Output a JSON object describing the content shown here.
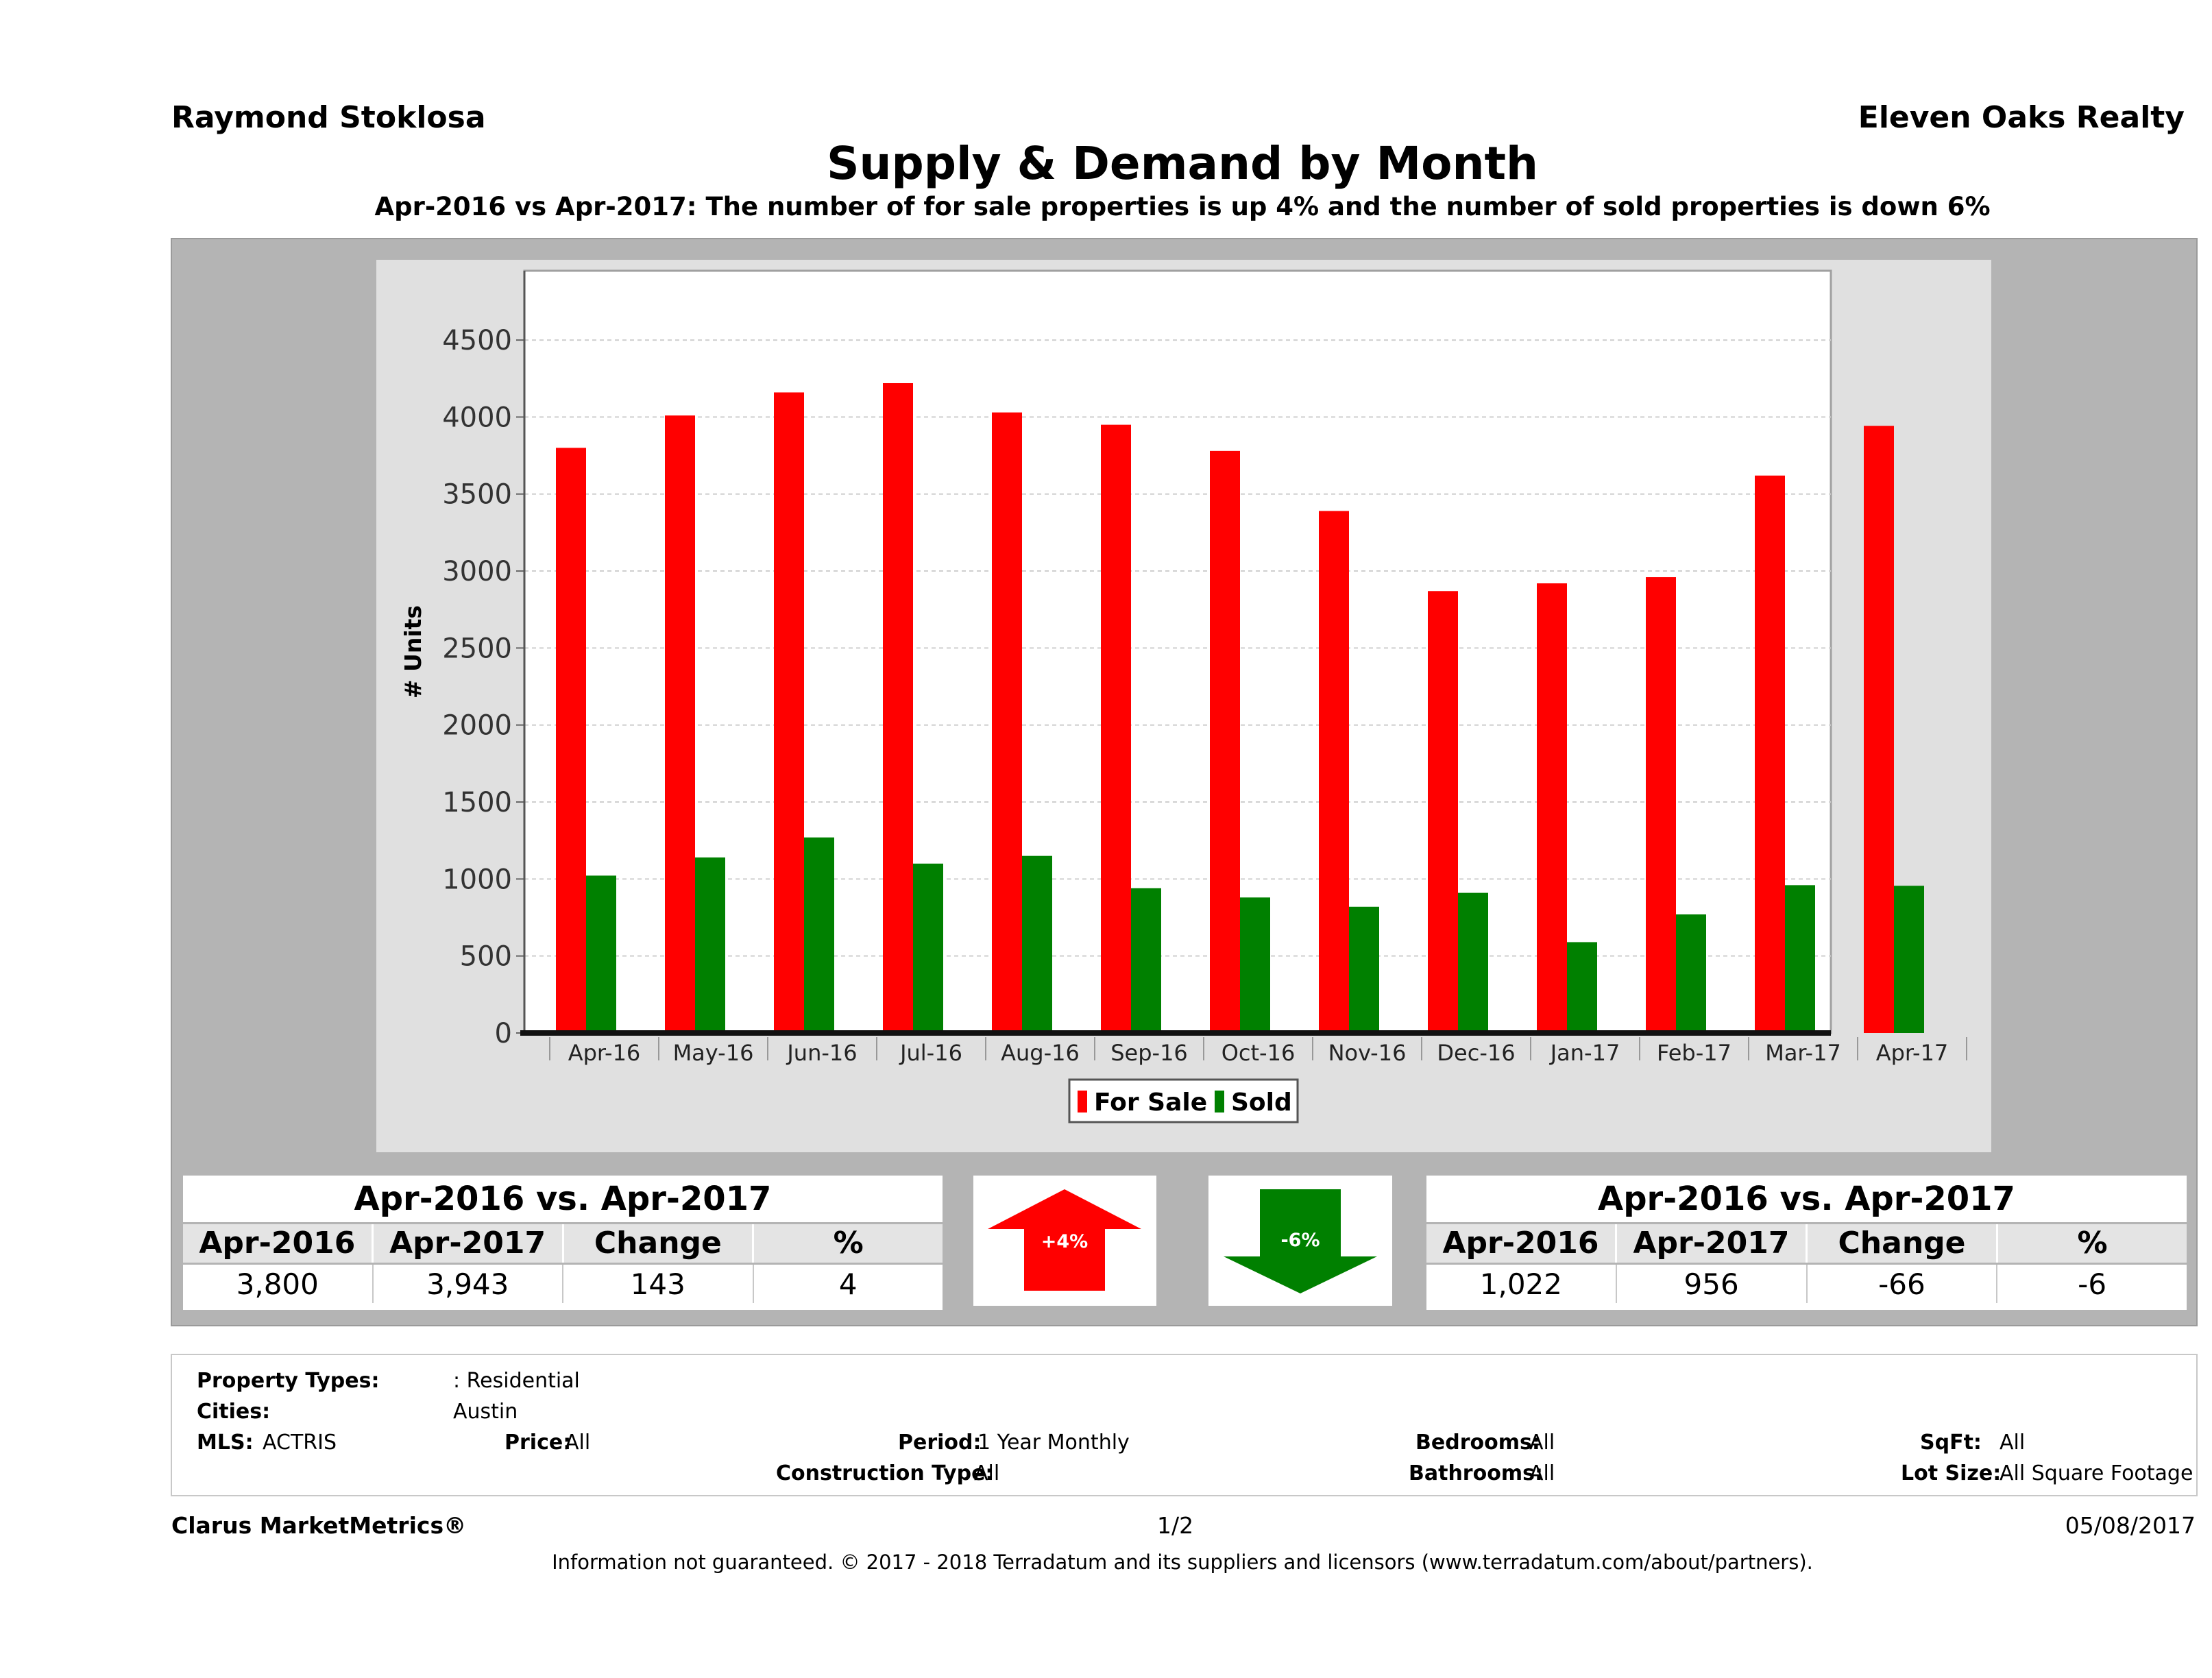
{
  "header": {
    "agent_name": "Raymond Stoklosa",
    "company": "Eleven Oaks Realty",
    "title": "Supply & Demand by Month",
    "subtitle": "Apr-2016 vs Apr-2017: The number of for sale properties is up 4% and the number of sold properties is down 6%"
  },
  "chart_data": {
    "type": "bar",
    "categories": [
      "Apr-16",
      "May-16",
      "Jun-16",
      "Jul-16",
      "Aug-16",
      "Sep-16",
      "Oct-16",
      "Nov-16",
      "Dec-16",
      "Jan-17",
      "Feb-17",
      "Mar-17",
      "Apr-17"
    ],
    "series": [
      {
        "name": "For Sale",
        "color": "#ff0000",
        "values": [
          3800,
          4010,
          4160,
          4220,
          4030,
          3950,
          3780,
          3390,
          2870,
          2920,
          2960,
          3620,
          3943
        ]
      },
      {
        "name": "Sold",
        "color": "#008000",
        "values": [
          1022,
          1140,
          1270,
          1100,
          1150,
          940,
          880,
          820,
          910,
          590,
          770,
          960,
          956
        ]
      }
    ],
    "ylabel": "# Units",
    "xlabel": "",
    "ylim": [
      0,
      4950
    ],
    "yticks": [
      0,
      500,
      1000,
      1500,
      2000,
      2500,
      3000,
      3500,
      4000,
      4500
    ],
    "grid": true,
    "legend_position": "bottom"
  },
  "stats_left": {
    "title": "Apr-2016 vs. Apr-2017",
    "headers": [
      "Apr-2016",
      "Apr-2017",
      "Change",
      "%"
    ],
    "values": [
      "3,800",
      "3,943",
      "143",
      "4"
    ]
  },
  "stats_right": {
    "title": "Apr-2016 vs. Apr-2017",
    "headers": [
      "Apr-2016",
      "Apr-2017",
      "Change",
      "%"
    ],
    "values": [
      "1,022",
      "956",
      "-66",
      "-6"
    ]
  },
  "arrows": {
    "up_label": "+4%",
    "up_color": "#ff0000",
    "down_label": "-6%",
    "down_color": "#008000"
  },
  "filters": {
    "property_types_label": "Property Types:",
    "property_types_value": ": Residential",
    "cities_label": "Cities:",
    "cities_value": "Austin",
    "mls_label": "MLS:",
    "mls_value": "ACTRIS",
    "price_label": "Price:",
    "price_value": "All",
    "period_label": "Period:",
    "period_value": "1 Year Monthly",
    "construction_label": "Construction Type:",
    "construction_value": "All",
    "bedrooms_label": "Bedrooms:",
    "bedrooms_value": "All",
    "bathrooms_label": "Bathrooms:",
    "bathrooms_value": "All",
    "sqft_label": "SqFt:",
    "sqft_value": "All",
    "lotsize_label": "Lot Size:",
    "lotsize_value": "All Square Footage"
  },
  "footer": {
    "brand": "Clarus MarketMetrics®",
    "page": "1/2",
    "date": "05/08/2017",
    "disclaimer": "Information not guaranteed. © 2017 - 2018 Terradatum and its suppliers and licensors (www.terradatum.com/about/partners)."
  }
}
